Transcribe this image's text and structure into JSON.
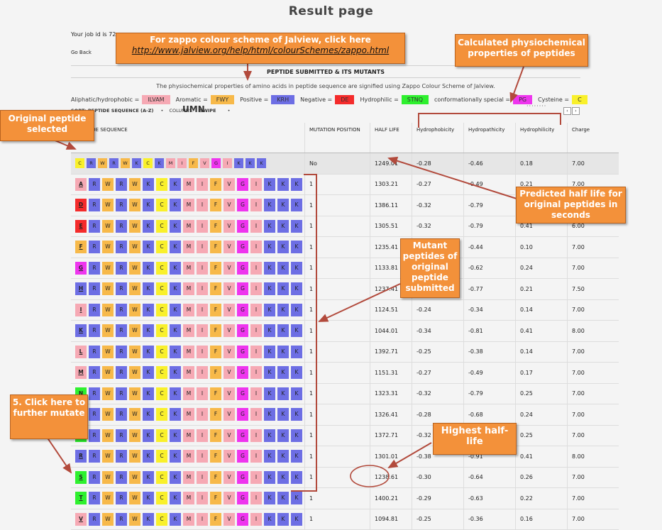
{
  "page": {
    "title": "Result page",
    "job_id_text": "Your job id is 72",
    "go_back": "Go Back",
    "section_title": "PEPTIDE SUBMITTED & ITS MUTANTS",
    "description": "The physiochemical properties of amino acids in peptide sequence are signified using Zappo Colour Scheme of Jalview."
  },
  "legend": [
    {
      "label": "Aliphatic/hydrophobic =",
      "box": "ILVAM",
      "color": "#f6a9b4"
    },
    {
      "label": "Aromatic =",
      "box": "FWY",
      "color": "#f7b94a"
    },
    {
      "label": "Positive =",
      "box": "KRH",
      "color": "#6d6ee4"
    },
    {
      "label": "Negative =",
      "box": "DE",
      "color": "#f42b2b"
    },
    {
      "label": "Hydrophilic =",
      "box": "STNQ",
      "color": "#2ef02e"
    },
    {
      "label": "conformationally special =",
      "box": "PG",
      "color": "#ee35ee"
    },
    {
      "label": "Cysteine =",
      "box": "C",
      "color": "#f9f02b"
    }
  ],
  "sort": {
    "label": "SORT: PEPTIDE SEQUENCE (A-Z)",
    "col_label": "COLUMNS:",
    "umn_overlay": "UMN",
    "swipe": "SWIPE"
  },
  "table": {
    "headers": {
      "seq": "PEPTIDE SEQUENCE",
      "pos": "MUTATION POSITION",
      "hl": "HALF LIFE",
      "hydrophobicity": "Hydrophobicity",
      "hydropathicity": "Hydropathicity",
      "hydrophilicity": "Hydrophilicity",
      "charge": "Charge"
    },
    "original": {
      "seq": "CRWRWKCKMIFVGIKKK",
      "pos": "No",
      "hl": "1249.01",
      "hydrophobicity": "-0.28",
      "hydropathicity": "-0.46",
      "hydrophilicity": "0.18",
      "charge": "7.00"
    },
    "rows": [
      {
        "seq": "ARWRWKCKMIFVGIKKK",
        "pos": "1",
        "hl": "1303.21",
        "hydrophobicity": "-0.27",
        "hydropathicity": "-0.49",
        "hydrophilicity": "0.21",
        "charge": "7.00"
      },
      {
        "seq": "DRWRWKCKMIFVGIKKK",
        "pos": "1",
        "hl": "1386.11",
        "hydrophobicity": "-0.32",
        "hydropathicity": "-0.79",
        "hydrophilicity": "0.41",
        "charge": "6.00"
      },
      {
        "seq": "ERWRWKCKMIFVGIKKK",
        "pos": "1",
        "hl": "1305.51",
        "hydrophobicity": "-0.32",
        "hydropathicity": "-0.79",
        "hydrophilicity": "0.41",
        "charge": "6.00"
      },
      {
        "seq": "FRWRWKCKMIFVGIKKK",
        "pos": "1",
        "hl": "1235.41",
        "hydrophobicity": "-0.25",
        "hydropathicity": "-0.44",
        "hydrophilicity": "0.10",
        "charge": "7.00"
      },
      {
        "seq": "GRWRWKCKMIFVGIKKK",
        "pos": "1",
        "hl": "1133.81",
        "hydrophobicity": "-0.28",
        "hydropathicity": "-0.62",
        "hydrophilicity": "0.24",
        "charge": "7.00"
      },
      {
        "seq": "HRWRWKCKMIFVGIKKK",
        "pos": "1",
        "hl": "1237.41",
        "hydrophobicity": "-0.31",
        "hydropathicity": "-0.77",
        "hydrophilicity": "0.21",
        "charge": "7.50"
      },
      {
        "seq": "IRWRWKCKMIFVGIKKK",
        "pos": "1",
        "hl": "1124.51",
        "hydrophobicity": "-0.24",
        "hydropathicity": "-0.34",
        "hydrophilicity": "0.14",
        "charge": "7.00"
      },
      {
        "seq": "KRWRWKCKMIFVGIKKK",
        "pos": "1",
        "hl": "1044.01",
        "hydrophobicity": "-0.34",
        "hydropathicity": "-0.81",
        "hydrophilicity": "0.41",
        "charge": "8.00"
      },
      {
        "seq": "LRWRWKCKMIFVGIKKK",
        "pos": "1",
        "hl": "1392.71",
        "hydrophobicity": "-0.25",
        "hydropathicity": "-0.38",
        "hydrophilicity": "0.14",
        "charge": "7.00"
      },
      {
        "seq": "MRWRWKCKMIFVGIKKK",
        "pos": "1",
        "hl": "1151.31",
        "hydrophobicity": "-0.27",
        "hydropathicity": "-0.49",
        "hydrophilicity": "0.17",
        "charge": "7.00"
      },
      {
        "seq": "NRWRWKCKMIFVGIKKK",
        "pos": "1",
        "hl": "1323.31",
        "hydrophobicity": "-0.32",
        "hydropathicity": "-0.79",
        "hydrophilicity": "0.25",
        "charge": "7.00"
      },
      {
        "seq": "PRWRWKCKMIFVGIKKK",
        "pos": "1",
        "hl": "1326.41",
        "hydrophobicity": "-0.28",
        "hydropathicity": "-0.68",
        "hydrophilicity": "0.24",
        "charge": "7.00"
      },
      {
        "seq": "QRWRWKCKMIFVGIKKK",
        "pos": "1",
        "hl": "1372.71",
        "hydrophobicity": "-0.32",
        "hydropathicity": "-0.79",
        "hydrophilicity": "0.25",
        "charge": "7.00"
      },
      {
        "seq": "RRWRWKCKMIFVGIKKK",
        "pos": "1",
        "hl": "1301.01",
        "hydrophobicity": "-0.38",
        "hydropathicity": "-0.91",
        "hydrophilicity": "0.41",
        "charge": "8.00"
      },
      {
        "seq": "SRWRWKCKMIFVGIKKK",
        "pos": "1",
        "hl": "1238.61",
        "hydrophobicity": "-0.30",
        "hydropathicity": "-0.64",
        "hydrophilicity": "0.26",
        "charge": "7.00"
      },
      {
        "seq": "TRWRWKCKMIFVGIKKK",
        "pos": "1",
        "hl": "1400.21",
        "hydrophobicity": "-0.29",
        "hydropathicity": "-0.63",
        "hydrophilicity": "0.22",
        "charge": "7.00"
      },
      {
        "seq": "VRWRWKCKMIFVGIKKK",
        "pos": "1",
        "hl": "1094.81",
        "hydrophobicity": "-0.25",
        "hydropathicity": "-0.36",
        "hydrophilicity": "0.16",
        "charge": "7.00"
      }
    ]
  },
  "aa_colors": {
    "I": "#f6a9b4",
    "L": "#f6a9b4",
    "V": "#f6a9b4",
    "A": "#f6a9b4",
    "M": "#f6a9b4",
    "F": "#f7b94a",
    "W": "#f7b94a",
    "Y": "#f7b94a",
    "K": "#6d6ee4",
    "R": "#6d6ee4",
    "H": "#6d6ee4",
    "D": "#f42b2b",
    "E": "#f42b2b",
    "S": "#2ef02e",
    "T": "#2ef02e",
    "N": "#2ef02e",
    "Q": "#2ef02e",
    "P": "#ee35ee",
    "G": "#ee35ee",
    "C": "#f9f02b"
  },
  "callouts": {
    "zappo_line1": "For zappo colour scheme of Jalview, click here",
    "zappo_link": "http://www.jalview.org/help/html/colourSchemes/zappo.html",
    "physio": "Calculated physiochemical properties of peptides",
    "original": "Original peptide selected",
    "halflife": "Predicted half life for original peptides in seconds",
    "mutant": "Mutant peptides of original peptide submitted",
    "highest": "Highest half-life",
    "click": "5. Click here to further mutate"
  }
}
